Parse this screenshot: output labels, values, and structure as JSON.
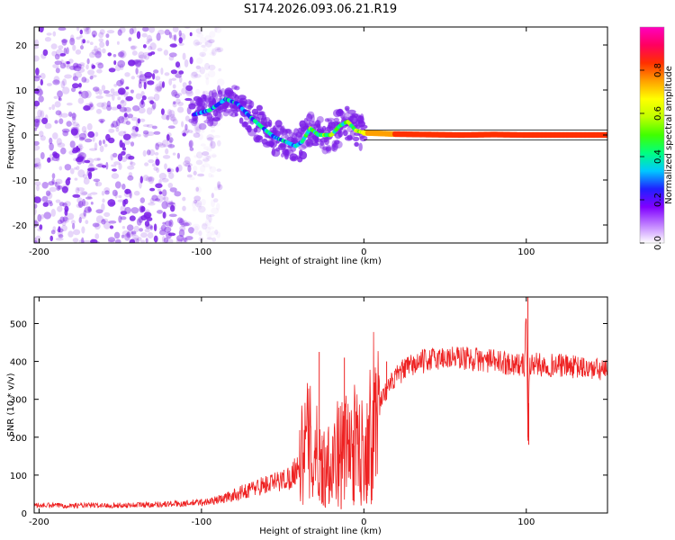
{
  "title": "S174.2026.093.06.21.R19",
  "colors": {
    "blob": "#7a1ee6",
    "ridge_hot": "#ff1a40",
    "ridge_mid": "#39ff14",
    "ridge_cool": "#00d8ff",
    "snr_line": "#ee2222",
    "axis": "#000000",
    "colorbar_stops": [
      "#ffffff",
      "#c080ff",
      "#8000ff",
      "#2020ff",
      "#00c8ff",
      "#00ff80",
      "#40ff00",
      "#c0ff00",
      "#ffff00",
      "#ffa000",
      "#ff3000",
      "#ff0060",
      "#ff00c0"
    ]
  },
  "chart_data": [
    {
      "type": "heatmap",
      "name": "spectrogram",
      "xlabel": "Height of straight line (km)",
      "ylabel": "Frequency (Hz)",
      "xlim": [
        -203,
        150
      ],
      "ylim": [
        -24,
        24
      ],
      "xticks": [
        "-200",
        "-100",
        "0",
        "100"
      ],
      "xtick_values": [
        -200,
        -100,
        0,
        100
      ],
      "yticks": [
        "20",
        "10",
        "0",
        "-10",
        "-20"
      ],
      "ytick_values": [
        20,
        10,
        0,
        -10,
        -20
      ],
      "noise_region": {
        "x_from": -203,
        "x_to": -106,
        "f_from": -24,
        "f_to": 24
      },
      "trace": {
        "x": [
          -105,
          -95,
          -85,
          -78,
          -70,
          -62,
          -55,
          -48,
          -42,
          -38,
          -33,
          -28,
          -20,
          -15,
          -10,
          -5,
          0,
          20,
          40,
          60,
          80,
          100,
          120,
          150
        ],
        "freq": [
          4.5,
          5.5,
          8.0,
          7.0,
          4.0,
          1.5,
          -0.5,
          -1.5,
          -2.5,
          -1.5,
          1.5,
          0.0,
          0.0,
          2.0,
          3.0,
          1.0,
          0.5,
          0.2,
          0.1,
          0.0,
          0.1,
          0.0,
          0.0,
          0.0
        ],
        "amplitude": [
          0.25,
          0.3,
          0.35,
          0.3,
          0.3,
          0.35,
          0.3,
          0.35,
          0.35,
          0.4,
          0.45,
          0.45,
          0.5,
          0.45,
          0.45,
          0.55,
          0.7,
          0.8,
          0.85,
          0.85,
          0.85,
          0.85,
          0.85,
          0.85
        ]
      }
    },
    {
      "type": "colorbar",
      "name": "amplitude-scale",
      "label": "Normalized spectral amplitude",
      "range": [
        0,
        1
      ],
      "ticks": [
        "0.0",
        "0.2",
        "0.4",
        "0.6",
        "0.8"
      ],
      "tick_values": [
        0.0,
        0.2,
        0.4,
        0.6,
        0.8
      ]
    },
    {
      "type": "line",
      "name": "snr",
      "xlabel": "Height of straight line (km)",
      "ylabel": "SNR (10 * v/v)",
      "xlim": [
        -203,
        150
      ],
      "ylim": [
        0,
        570
      ],
      "xticks": [
        "-200",
        "-100",
        "0",
        "100"
      ],
      "xtick_values": [
        -200,
        -100,
        0,
        100
      ],
      "yticks": [
        "0",
        "100",
        "200",
        "300",
        "400",
        "500"
      ],
      "ytick_values": [
        0,
        100,
        200,
        300,
        400,
        500
      ],
      "x": [
        -203,
        -150,
        -110,
        -95,
        -85,
        -75,
        -65,
        -55,
        -45,
        -40,
        -35,
        -30,
        -25,
        -20,
        -15,
        -10,
        -5,
        0,
        5,
        10,
        15,
        20,
        25,
        30,
        40,
        50,
        60,
        70,
        80,
        90,
        99,
        100,
        101,
        102,
        103,
        110,
        120,
        130,
        140,
        150
      ],
      "y": [
        20,
        20,
        25,
        30,
        40,
        55,
        70,
        80,
        95,
        130,
        190,
        160,
        120,
        150,
        160,
        170,
        180,
        160,
        240,
        300,
        330,
        360,
        380,
        390,
        405,
        410,
        410,
        405,
        400,
        395,
        390,
        540,
        200,
        380,
        395,
        390,
        390,
        385,
        380,
        375
      ],
      "spikes": [
        {
          "x": 101.0,
          "y": 570
        },
        {
          "x": 101.5,
          "y": 180
        },
        {
          "x": -27.5,
          "y": 425
        },
        {
          "x": -25.0,
          "y": 20
        },
        {
          "x": -14.0,
          "y": 10
        },
        {
          "x": -12.0,
          "y": 410
        },
        {
          "x": -6.0,
          "y": 30
        },
        {
          "x": 2.0,
          "y": 45
        },
        {
          "x": 14.0,
          "y": 400
        }
      ]
    }
  ]
}
